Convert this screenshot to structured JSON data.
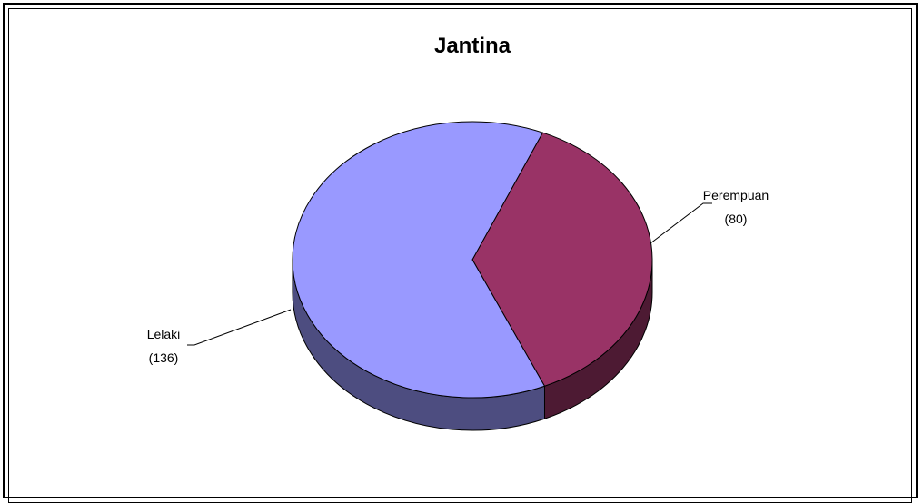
{
  "chart_data": {
    "type": "pie",
    "title": "Jantina",
    "slices": [
      {
        "label": "Perempuan",
        "value": 80,
        "value_label": "(80)",
        "color": "#993366"
      },
      {
        "label": "Lelaki",
        "value": 136,
        "value_label": "(136)",
        "color": "#9999ff"
      }
    ],
    "style": "3d",
    "legend": "none"
  }
}
